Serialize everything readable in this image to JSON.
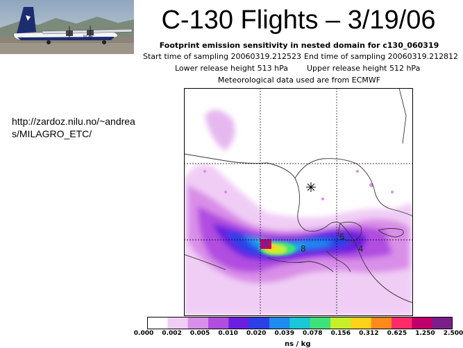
{
  "slide": {
    "title": "C-130 Flights – 3/19/06",
    "url": "http://zardoz.nilu.no/~andreas/MILAGRO_ETC/"
  },
  "figure": {
    "header_title": "Footprint emission sensitivity in nested domain for c130_060319",
    "start_time": "Start time of sampling 20060319.212523",
    "end_time": "End time of sampling 20060319.212812",
    "lower_release": "Lower release height  513 hPa",
    "upper_release": "Upper release height  512 hPa",
    "met_data": "Meteorological data used are from ECMWF",
    "map_labels": [
      "8",
      "5",
      "4"
    ],
    "colorbar_ticks": [
      "0.000",
      "0.002",
      "0.005",
      "0.010",
      "0.020",
      "0.039",
      "0.078",
      "0.156",
      "0.312",
      "0.625",
      "1.250",
      "2.500"
    ],
    "colorbar_colors": [
      "#ffffff",
      "#f0cdf5",
      "#d98ee8",
      "#b14ee0",
      "#6a1fe0",
      "#2a3fe8",
      "#1f8af0",
      "#19c7d6",
      "#3fe27a",
      "#c6f02a",
      "#ffd21a",
      "#ff8a1a",
      "#ff2a6a",
      "#c0006a",
      "#7a1f8a"
    ],
    "units": "ns / kg"
  },
  "photo": {
    "caption_icon": "aircraft-photo"
  }
}
